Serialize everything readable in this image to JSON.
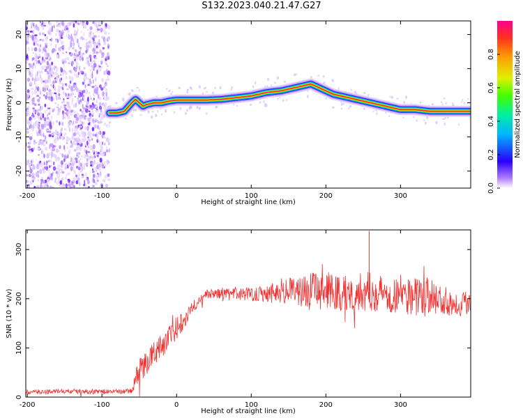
{
  "title": "S132.2023.040.21.47.G27",
  "colors": {
    "snr_line": "#f03232",
    "frame": "#000000"
  },
  "colorbar": {
    "label": "Normalized spectral amplitude",
    "ticks": [
      "0.0",
      "0.2",
      "0.4",
      "0.6",
      "0.8"
    ],
    "tick_values": [
      0.0,
      0.2,
      0.4,
      0.6,
      0.8
    ],
    "range": [
      0,
      1
    ]
  },
  "chart_data": [
    {
      "type": "heatmap",
      "title": "",
      "xlabel": "Height of straight line (km)",
      "ylabel": "Frequency (Hz)",
      "xlim": [
        -202,
        394
      ],
      "ylim": [
        -25,
        24
      ],
      "x_ticks": [
        -200,
        -100,
        0,
        100,
        200,
        300
      ],
      "y_ticks": [
        -20,
        -10,
        0,
        10,
        20
      ],
      "noise_region_x": [
        -202,
        -90
      ],
      "signal_ridge": {
        "x": [
          -90,
          -80,
          -70,
          -60,
          -55,
          -50,
          -45,
          -40,
          -30,
          -20,
          -10,
          0,
          20,
          40,
          60,
          80,
          100,
          120,
          140,
          160,
          170,
          180,
          190,
          200,
          210,
          220,
          240,
          260,
          280,
          300,
          320,
          340,
          360,
          380,
          394
        ],
        "y": [
          -3,
          -3,
          -2.5,
          0,
          1,
          0,
          -1,
          -0.5,
          0,
          0,
          0.5,
          0.8,
          0.8,
          0.8,
          1,
          1.5,
          2,
          3,
          3.5,
          4.5,
          5,
          5.5,
          4.5,
          3.5,
          2.5,
          2,
          1,
          0,
          -1,
          -2,
          -2,
          -2.5,
          -2.5,
          -2.5,
          -2.5
        ]
      }
    },
    {
      "type": "line",
      "title": "",
      "xlabel": "Height of straight line (km)",
      "ylabel": "SNR (10 * v/v)",
      "xlim": [
        -202,
        394
      ],
      "ylim": [
        0,
        340
      ],
      "x_ticks": [
        -200,
        -100,
        0,
        100,
        200,
        300
      ],
      "y_ticks": [
        0,
        100,
        200,
        300
      ],
      "series": [
        {
          "x": [
            -202,
            -150,
            -100,
            -60,
            -55,
            -50,
            -40,
            -30,
            -20,
            -10,
            0,
            10,
            20,
            30,
            40,
            60,
            80,
            100,
            120,
            140,
            160,
            180,
            200,
            220,
            240,
            260,
            280,
            300,
            320,
            340,
            360,
            380,
            394
          ],
          "y": [
            10,
            12,
            11,
            12,
            35,
            55,
            70,
            90,
            105,
            120,
            140,
            160,
            180,
            195,
            210,
            210,
            210,
            210,
            212,
            215,
            215,
            218,
            215,
            210,
            212,
            215,
            210,
            210,
            205,
            205,
            195,
            190,
            195
          ],
          "noise_amplitude": [
            5,
            5,
            5,
            5,
            20,
            25,
            25,
            25,
            25,
            25,
            25,
            20,
            15,
            10,
            10,
            10,
            12,
            15,
            20,
            25,
            30,
            35,
            40,
            40,
            40,
            40,
            40,
            40,
            40,
            35,
            30,
            25,
            25
          ],
          "spikes": [
            {
              "x": 258,
              "y": 338
            }
          ]
        }
      ]
    }
  ]
}
